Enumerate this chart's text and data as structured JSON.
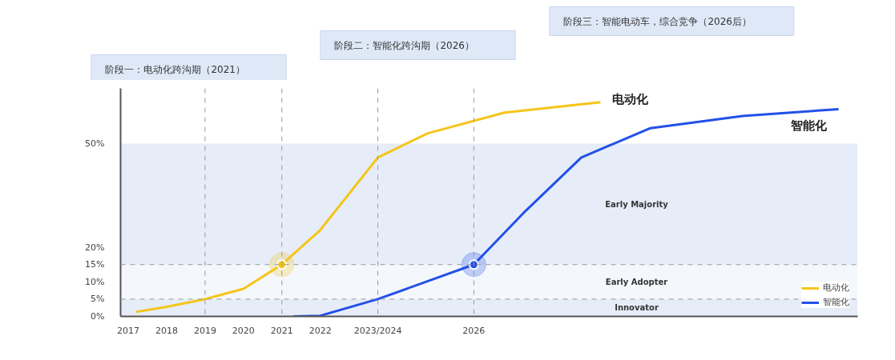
{
  "chart_data": {
    "type": "line",
    "annotations": [
      "阶段一：电动化跨沟期（2021）",
      "阶段二：智能化跨沟期（2026）",
      "阶段三：智能电动车，综合竞争（2026后）"
    ],
    "xlim": [
      2016.8,
      2036
    ],
    "xticks": [
      2017,
      2018,
      2019,
      2020,
      2021,
      2022,
      {
        "value": 2023.5,
        "label": "2023/2024"
      },
      2026
    ],
    "ylim": [
      0,
      66
    ],
    "yticks": [
      {
        "value": 0,
        "label": "0%"
      },
      {
        "value": 5,
        "label": "5%"
      },
      {
        "value": 10,
        "label": "10%"
      },
      {
        "value": 15,
        "label": "15%"
      },
      {
        "value": 20,
        "label": "20%"
      },
      {
        "value": 50,
        "label": "50%"
      }
    ],
    "series": [
      {
        "name": "电动化",
        "color": "#f5c518",
        "x": [
          2017.2,
          2018,
          2019,
          2020,
          2021,
          2022,
          2023.5,
          2024.8,
          2026.8,
          2029.3
        ],
        "values": [
          1.3,
          2.8,
          5,
          8,
          15,
          25,
          46,
          53,
          59,
          62
        ]
      },
      {
        "name": "智能化",
        "color": "#2350e8",
        "x": [
          2021.3,
          2022,
          2023.5,
          2026,
          2027.3,
          2028.8,
          2030.6,
          2033,
          2035.5
        ],
        "values": [
          0,
          0.2,
          5,
          15,
          30,
          46,
          54.5,
          58,
          60
        ]
      },
      {
        "type": "scatter",
        "marker": "circle",
        "color": "#f5c518",
        "x": [
          2021
        ],
        "values": [
          15
        ]
      },
      {
        "type": "scatter",
        "marker": "circle",
        "color": "#2350e8",
        "x": [
          2026
        ],
        "values": [
          15
        ]
      }
    ],
    "bands": [
      {
        "axis": "y",
        "from": 0,
        "to": 5,
        "label": "Innovator",
        "color": "#e6edf8"
      },
      {
        "axis": "y",
        "from": 5,
        "to": 15,
        "label": "Early Adopter",
        "color": "#f4f7fc"
      },
      {
        "axis": "y",
        "from": 15,
        "to": 50,
        "label": "Early Majority",
        "color": "#e6edf8"
      }
    ],
    "ref_lines": [
      {
        "axis": "y",
        "value": 5,
        "line_style": "dashed"
      },
      {
        "axis": "y",
        "value": 15,
        "line_style": "dashed"
      },
      {
        "axis": "x",
        "value": 2019,
        "line_style": "dashed"
      },
      {
        "axis": "x",
        "value": 2021,
        "line_style": "dashed"
      },
      {
        "axis": "x",
        "value": 2023.5,
        "line_style": "dashed"
      },
      {
        "axis": "x",
        "value": 2026,
        "line_style": "dashed"
      }
    ],
    "grid": false,
    "legend": "bottom right",
    "marker": "none",
    "line_style": "solid"
  }
}
